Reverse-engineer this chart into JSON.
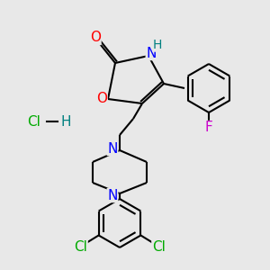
{
  "background_color": "#e8e8e8",
  "bond_color": "#000000",
  "bond_width": 1.5,
  "atom_colors": {
    "O": "#ff0000",
    "N": "#0000ff",
    "H": "#008080",
    "F": "#cc00cc",
    "Cl": "#00aa00",
    "C": "#000000"
  },
  "font_size_atoms": 11,
  "font_size_hcl": 11
}
